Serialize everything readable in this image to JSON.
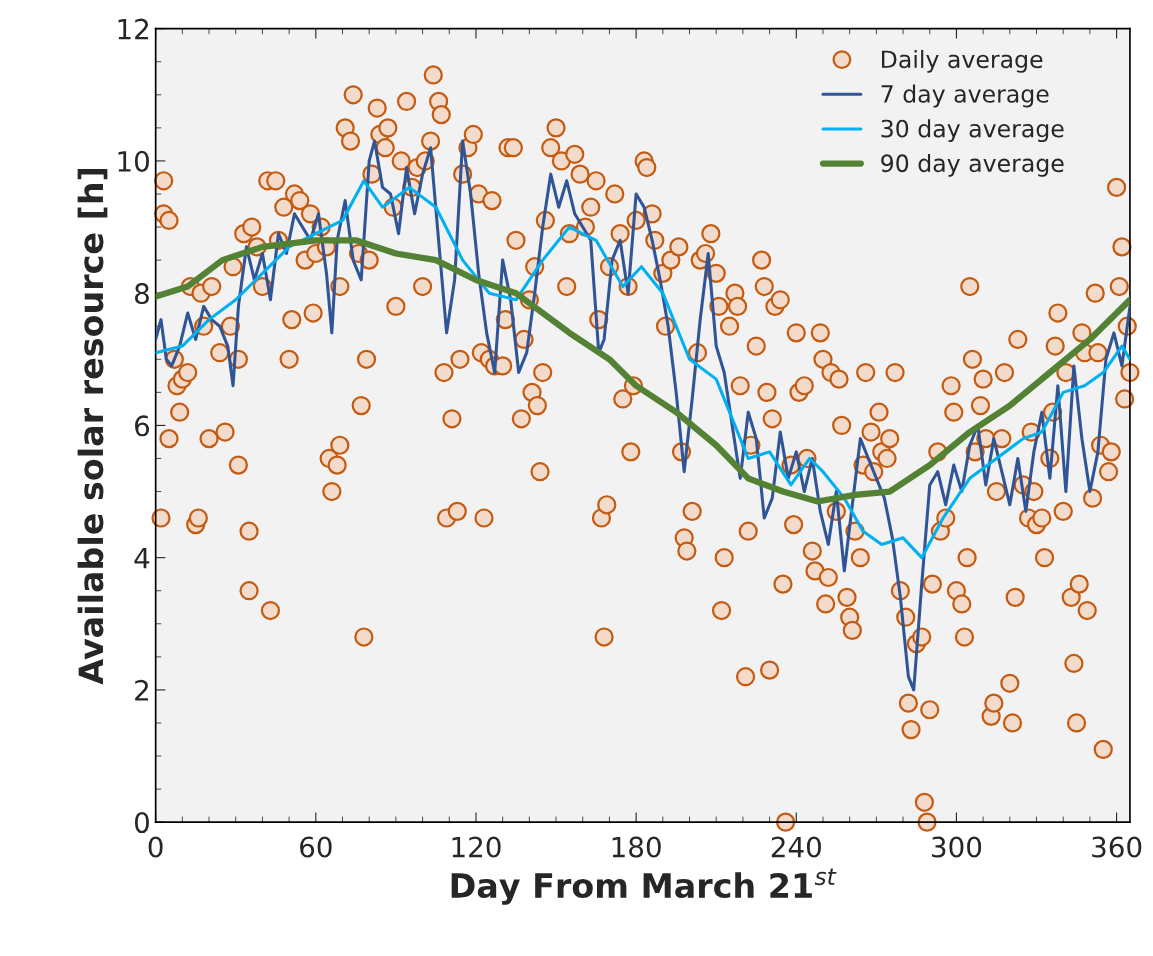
{
  "chart_data": {
    "type": "scatter",
    "xlabel": "Day From March 21$^{st}$",
    "ylabel": "Available solar resource [h]",
    "xlim": [
      0,
      365
    ],
    "ylim": [
      0,
      12
    ],
    "xticks": [
      0,
      60,
      120,
      180,
      240,
      300,
      360
    ],
    "yticks": [
      0,
      2,
      4,
      6,
      8,
      10,
      12
    ],
    "grid": false,
    "legend": "top right",
    "series": [
      {
        "name": "Daily average",
        "marker": "circle",
        "color": "#c55a11",
        "x": [
          2,
          3,
          3,
          5,
          5,
          7,
          8,
          9,
          10,
          12,
          13,
          15,
          16,
          17,
          18,
          20,
          21,
          24,
          26,
          28,
          29,
          31,
          31,
          33,
          35,
          35,
          36,
          38,
          40,
          42,
          43,
          45,
          46,
          48,
          50,
          51,
          52,
          54,
          56,
          58,
          59,
          60,
          62,
          64,
          65,
          66,
          68,
          69,
          69,
          71,
          73,
          74,
          76,
          77,
          78,
          79,
          80,
          81,
          83,
          84,
          86,
          87,
          89,
          90,
          92,
          94,
          96,
          98,
          100,
          101,
          103,
          104,
          106,
          107,
          108,
          109,
          111,
          113,
          114,
          115,
          117,
          119,
          121,
          122,
          123,
          125,
          126,
          127,
          130,
          131,
          132,
          134,
          135,
          137,
          138,
          140,
          141,
          142,
          143,
          144,
          145,
          146,
          148,
          150,
          152,
          154,
          155,
          157,
          159,
          161,
          163,
          165,
          166,
          167,
          168,
          169,
          170,
          172,
          174,
          175,
          177,
          178,
          179,
          180,
          183,
          184,
          186,
          187,
          190,
          191,
          193,
          196,
          197,
          198,
          199,
          201,
          203,
          204,
          206,
          208,
          210,
          211,
          212,
          213,
          215,
          217,
          218,
          219,
          221,
          222,
          223,
          225,
          227,
          228,
          229,
          230,
          231,
          232,
          234,
          235,
          236,
          238,
          239,
          240,
          241,
          243,
          244,
          246,
          247,
          249,
          250,
          251,
          252,
          253,
          255,
          256,
          257,
          259,
          260,
          261,
          262,
          264,
          265,
          266,
          268,
          269,
          271,
          272,
          274,
          275,
          277,
          279,
          281,
          282,
          283,
          285,
          287,
          288,
          289,
          290,
          291,
          293,
          294,
          296,
          298,
          299,
          300,
          302,
          303,
          304,
          305,
          306,
          307,
          309,
          310,
          311,
          313,
          314,
          315,
          317,
          318,
          320,
          321,
          322,
          323,
          325,
          327,
          328,
          329,
          330,
          332,
          333,
          335,
          336,
          337,
          338,
          340,
          341,
          343,
          344,
          345,
          346,
          347,
          348,
          349,
          351,
          352,
          353,
          354,
          355,
          357,
          358,
          360,
          361,
          362,
          363,
          364,
          365
        ],
        "values": [
          4.6,
          9.2,
          9.7,
          9.1,
          5.8,
          7.0,
          6.6,
          6.2,
          6.7,
          6.8,
          8.1,
          4.5,
          4.6,
          8.0,
          7.5,
          5.8,
          8.1,
          7.1,
          5.9,
          7.5,
          8.4,
          5.4,
          7.0,
          8.9,
          4.4,
          3.5,
          9.0,
          8.7,
          8.1,
          9.7,
          3.2,
          9.7,
          8.8,
          9.3,
          7.0,
          7.6,
          9.5,
          9.4,
          8.5,
          9.2,
          7.7,
          8.6,
          9.0,
          8.7,
          5.5,
          5.0,
          5.4,
          5.7,
          8.1,
          10.5,
          10.3,
          11.0,
          8.6,
          6.3,
          2.8,
          7.0,
          8.5,
          9.8,
          10.8,
          10.4,
          10.2,
          10.5,
          9.3,
          7.8,
          10.0,
          10.9,
          9.6,
          9.9,
          8.1,
          10.0,
          10.3,
          11.3,
          10.9,
          10.7,
          6.8,
          4.6,
          6.1,
          4.7,
          7.0,
          9.8,
          10.2,
          10.4,
          9.5,
          7.1,
          4.6,
          7.0,
          9.4,
          6.9,
          6.9,
          7.6,
          10.2,
          10.2,
          8.8,
          6.1,
          7.3,
          7.9,
          6.5,
          8.4,
          6.3,
          5.3,
          6.8,
          9.1,
          10.2,
          10.5,
          10.0,
          8.1,
          8.9,
          10.1,
          9.8,
          9.0,
          9.3,
          9.7,
          7.6,
          4.6,
          2.8,
          4.8,
          8.4,
          9.5,
          8.9,
          6.4,
          8.1,
          5.6,
          6.6,
          9.1,
          10.0,
          9.9,
          9.2,
          8.8,
          8.3,
          7.5,
          8.5,
          8.7,
          5.6,
          4.3,
          4.1,
          4.7,
          7.1,
          8.5,
          8.6,
          8.9,
          8.3,
          7.8,
          3.2,
          4.0,
          7.5,
          8.0,
          7.8,
          6.6,
          2.2,
          4.4,
          5.7,
          7.2,
          8.5,
          8.1,
          6.5,
          2.3,
          6.1,
          7.8,
          7.9,
          3.6,
          0.0,
          5.4,
          4.5,
          7.4,
          6.5,
          6.6,
          5.5,
          4.1,
          3.8,
          7.4,
          7.0,
          3.3,
          3.7,
          6.8,
          4.7,
          6.7,
          6.0,
          3.4,
          3.1,
          2.9,
          4.4,
          4.0,
          5.4,
          6.8,
          5.9,
          5.3,
          6.2,
          5.6,
          5.5,
          5.8,
          6.8,
          3.5,
          3.1,
          1.8,
          1.4,
          2.7,
          2.8,
          0.3,
          0.0,
          1.7,
          3.6,
          5.6,
          4.4,
          4.6,
          6.6,
          6.2,
          3.5,
          3.3,
          2.8,
          4.0,
          8.1,
          7.0,
          5.6,
          6.3,
          6.7,
          5.8,
          1.6,
          1.8,
          5.0,
          5.8,
          6.8,
          2.1,
          1.5,
          3.4,
          7.3,
          5.1,
          4.6,
          5.9,
          5.0,
          4.5,
          4.6,
          4.0,
          5.5,
          6.2,
          7.2,
          7.7,
          4.7,
          6.8,
          3.4,
          2.4,
          1.5,
          3.6,
          7.4,
          7.1,
          3.2,
          4.9,
          8.0,
          7.1,
          5.7,
          1.1,
          5.3,
          5.6,
          9.6,
          8.1,
          8.7,
          6.4,
          7.5,
          6.8
        ]
      },
      {
        "name": "7 day average",
        "type": "line",
        "marker": "none",
        "line_style": "solid",
        "color": "#2f5597",
        "x": [
          0,
          2,
          4,
          6,
          9,
          12,
          15,
          18,
          21,
          24,
          27,
          29,
          31,
          34,
          37,
          40,
          43,
          46,
          49,
          52,
          55,
          58,
          61,
          64,
          66,
          68,
          71,
          74,
          77,
          80,
          82,
          85,
          88,
          91,
          94,
          97,
          100,
          103,
          106,
          109,
          112,
          115,
          118,
          121,
          124,
          127,
          130,
          133,
          136,
          139,
          142,
          145,
          148,
          151,
          154,
          157,
          160,
          163,
          166,
          168,
          171,
          174,
          177,
          180,
          183,
          186,
          189,
          192,
          195,
          198,
          201,
          204,
          207,
          210,
          213,
          216,
          219,
          222,
          225,
          228,
          231,
          234,
          237,
          240,
          243,
          246,
          249,
          252,
          255,
          258,
          261,
          264,
          267,
          270,
          273,
          276,
          279,
          282,
          284,
          287,
          290,
          293,
          296,
          299,
          302,
          305,
          308,
          311,
          314,
          317,
          320,
          323,
          326,
          329,
          332,
          335,
          338,
          341,
          344,
          347,
          350,
          353,
          356,
          359,
          362,
          365
        ],
        "values": [
          7.3,
          7.6,
          7.0,
          6.9,
          7.2,
          7.7,
          7.3,
          7.8,
          7.6,
          7.5,
          7.2,
          6.6,
          7.8,
          8.7,
          8.2,
          8.6,
          7.9,
          8.9,
          8.6,
          9.2,
          9.0,
          8.8,
          9.2,
          8.3,
          7.4,
          8.8,
          9.4,
          8.5,
          8.2,
          10.0,
          10.3,
          9.6,
          9.5,
          8.9,
          9.9,
          9.2,
          9.8,
          10.2,
          8.8,
          7.4,
          8.2,
          10.3,
          9.5,
          8.3,
          7.4,
          6.8,
          8.5,
          7.9,
          6.8,
          7.1,
          8.0,
          9.0,
          9.8,
          9.3,
          9.7,
          9.2,
          9.0,
          8.8,
          7.1,
          7.3,
          8.5,
          8.8,
          8.0,
          9.5,
          9.3,
          8.8,
          8.2,
          7.5,
          6.5,
          5.3,
          6.4,
          7.6,
          8.6,
          7.2,
          6.8,
          6.0,
          5.2,
          6.2,
          5.8,
          4.6,
          4.9,
          5.9,
          5.2,
          5.6,
          5.0,
          5.5,
          4.7,
          4.2,
          5.0,
          3.8,
          4.8,
          5.8,
          5.5,
          5.2,
          4.9,
          4.3,
          3.4,
          2.2,
          2.0,
          3.6,
          5.1,
          5.3,
          4.8,
          5.4,
          5.0,
          5.7,
          6.0,
          5.1,
          5.8,
          5.3,
          4.8,
          5.5,
          4.7,
          5.6,
          6.2,
          5.2,
          6.6,
          5.0,
          6.9,
          5.8,
          5.0,
          5.6,
          7.0,
          7.4,
          6.9,
          7.8
        ]
      },
      {
        "name": "30 day average",
        "type": "line",
        "marker": "none",
        "line_style": "solid",
        "color": "#00b0f0",
        "x": [
          0,
          10,
          20,
          30,
          40,
          50,
          60,
          70,
          78,
          85,
          95,
          105,
          115,
          125,
          135,
          145,
          155,
          165,
          175,
          182,
          190,
          200,
          210,
          215,
          222,
          230,
          238,
          245,
          250,
          258,
          265,
          272,
          280,
          287,
          295,
          305,
          315,
          325,
          332,
          340,
          348,
          355,
          362,
          365
        ],
        "values": [
          7.1,
          7.2,
          7.6,
          7.9,
          8.3,
          8.7,
          8.9,
          9.1,
          9.7,
          9.3,
          9.6,
          9.3,
          8.5,
          8.0,
          7.9,
          8.5,
          9.0,
          8.8,
          8.1,
          8.4,
          8.0,
          7.0,
          6.7,
          6.2,
          5.5,
          5.6,
          5.1,
          5.5,
          5.3,
          4.9,
          4.4,
          4.2,
          4.3,
          4.0,
          4.6,
          5.2,
          5.5,
          5.8,
          5.9,
          6.5,
          6.6,
          6.8,
          7.2,
          7.0
        ]
      },
      {
        "name": "90 day average",
        "type": "line",
        "marker": "none",
        "line_style": "solid",
        "color": "#548235",
        "x": [
          0,
          12,
          25,
          40,
          60,
          75,
          90,
          105,
          120,
          135,
          145,
          155,
          170,
          180,
          195,
          210,
          222,
          235,
          248,
          262,
          275,
          290,
          305,
          320,
          335,
          350,
          365
        ],
        "values": [
          7.95,
          8.1,
          8.5,
          8.7,
          8.8,
          8.8,
          8.6,
          8.5,
          8.2,
          8.0,
          7.7,
          7.4,
          7.0,
          6.6,
          6.2,
          5.7,
          5.2,
          5.0,
          4.85,
          4.95,
          5.0,
          5.4,
          5.9,
          6.3,
          6.8,
          7.3,
          7.9
        ]
      }
    ]
  }
}
